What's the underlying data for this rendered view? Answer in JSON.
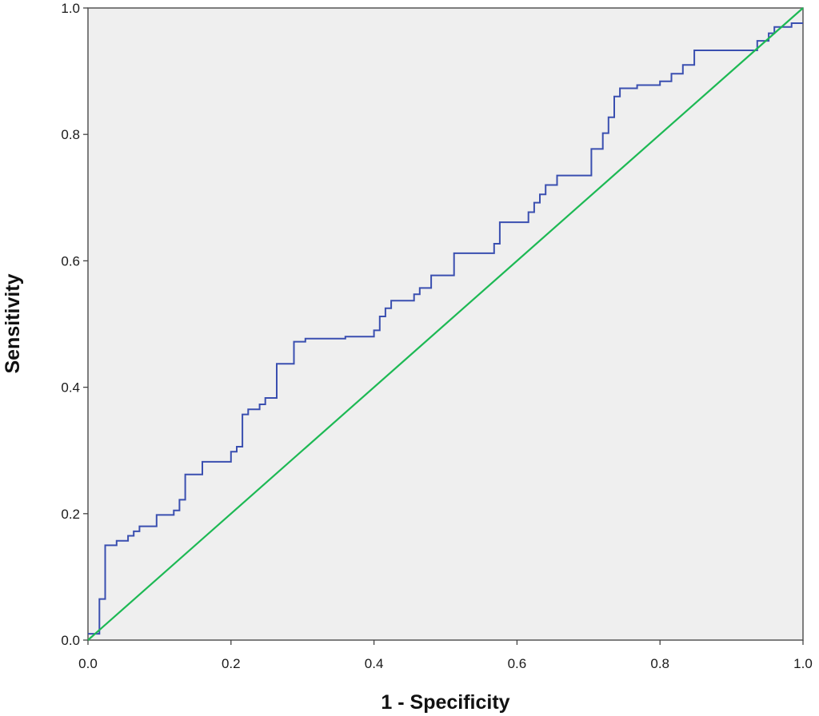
{
  "chart_data": {
    "type": "line",
    "title": "",
    "xlabel": "1 - Specificity",
    "ylabel": "Sensitivity",
    "xlim": [
      0.0,
      1.0
    ],
    "ylim": [
      0.0,
      1.0
    ],
    "x_ticks": [
      0.0,
      0.2,
      0.4,
      0.6,
      0.8,
      1.0
    ],
    "y_ticks": [
      0.0,
      0.2,
      0.4,
      0.6,
      0.8,
      1.0
    ],
    "x_tick_labels": [
      "0.0",
      "0.2",
      "0.4",
      "0.6",
      "0.8",
      "1.0"
    ],
    "y_tick_labels": [
      "0.0",
      "0.2",
      "0.4",
      "0.6",
      "0.8",
      "1.0"
    ],
    "grid": false,
    "legend": "none",
    "plot_background": "#efefef",
    "series": [
      {
        "color": "#3a4fb0",
        "style": "step",
        "x": [
          0.0,
          0.016,
          0.016,
          0.024,
          0.024,
          0.04,
          0.04,
          0.056,
          0.056,
          0.064,
          0.064,
          0.072,
          0.072,
          0.096,
          0.096,
          0.12,
          0.12,
          0.128,
          0.128,
          0.136,
          0.136,
          0.16,
          0.16,
          0.2,
          0.2,
          0.208,
          0.208,
          0.216,
          0.216,
          0.224,
          0.224,
          0.24,
          0.24,
          0.248,
          0.248,
          0.264,
          0.264,
          0.288,
          0.288,
          0.304,
          0.304,
          0.36,
          0.36,
          0.4,
          0.4,
          0.408,
          0.408,
          0.416,
          0.416,
          0.424,
          0.424,
          0.456,
          0.456,
          0.464,
          0.464,
          0.48,
          0.48,
          0.512,
          0.512,
          0.568,
          0.568,
          0.576,
          0.576,
          0.616,
          0.616,
          0.624,
          0.624,
          0.632,
          0.632,
          0.64,
          0.64,
          0.656,
          0.656,
          0.704,
          0.704,
          0.72,
          0.72,
          0.728,
          0.728,
          0.736,
          0.736,
          0.744,
          0.744,
          0.768,
          0.768,
          0.8,
          0.8,
          0.816,
          0.816,
          0.832,
          0.832,
          0.848,
          0.848,
          0.936,
          0.936,
          0.952,
          0.952,
          0.96,
          0.96,
          0.984,
          0.984,
          1.0
        ],
        "y": [
          0.01,
          0.01,
          0.065,
          0.065,
          0.15,
          0.15,
          0.157,
          0.157,
          0.165,
          0.165,
          0.172,
          0.172,
          0.18,
          0.18,
          0.198,
          0.198,
          0.205,
          0.205,
          0.222,
          0.222,
          0.262,
          0.262,
          0.282,
          0.282,
          0.298,
          0.298,
          0.306,
          0.306,
          0.357,
          0.357,
          0.365,
          0.365,
          0.373,
          0.373,
          0.383,
          0.383,
          0.437,
          0.437,
          0.472,
          0.472,
          0.477,
          0.477,
          0.48,
          0.48,
          0.49,
          0.49,
          0.512,
          0.512,
          0.525,
          0.525,
          0.537,
          0.537,
          0.547,
          0.547,
          0.557,
          0.557,
          0.577,
          0.577,
          0.612,
          0.612,
          0.627,
          0.627,
          0.661,
          0.661,
          0.677,
          0.677,
          0.692,
          0.692,
          0.705,
          0.705,
          0.72,
          0.72,
          0.735,
          0.735,
          0.777,
          0.777,
          0.802,
          0.802,
          0.827,
          0.827,
          0.86,
          0.86,
          0.873,
          0.873,
          0.878,
          0.878,
          0.884,
          0.884,
          0.896,
          0.896,
          0.91,
          0.91,
          0.933,
          0.933,
          0.948,
          0.948,
          0.96,
          0.96,
          0.97,
          0.97,
          0.976,
          0.976
        ]
      },
      {
        "color": "#1db954",
        "style": "line",
        "x": [
          0.0,
          1.0
        ],
        "y": [
          0.0,
          1.0
        ]
      }
    ]
  }
}
